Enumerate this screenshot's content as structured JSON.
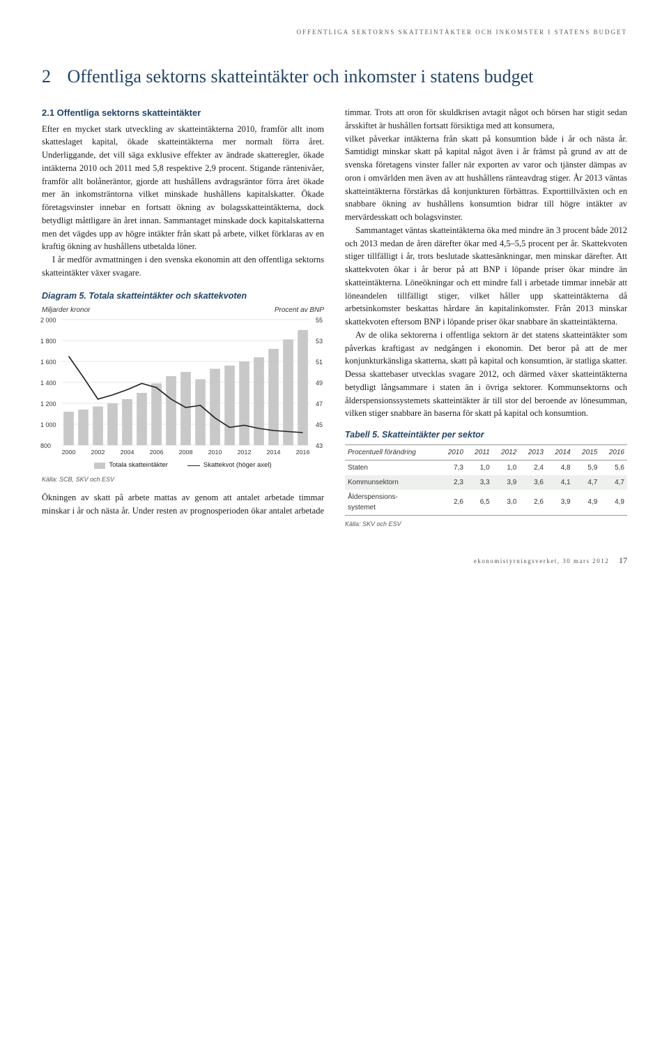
{
  "running_head": "offentliga sektorns skatteintäkter och inkomster i statens budget",
  "title_number": "2",
  "title_text": "Offentliga sektorns skatteintäkter och inkomster i statens budget",
  "section_head": "2.1 Offentliga sektorns skatteintäkter",
  "para1": "Efter en mycket stark utveckling av skatteintäkterna 2010, framför allt inom skatteslaget kapital, ökade skatteintäkterna mer normalt förra året. Underliggande, det vill säga exklusive effekter av ändrade skatteregler, ökade intäkterna 2010 och 2011 med 5,8 respektive 2,9 procent. Stigande räntenivåer, framför allt bolåneräntor, gjorde att hushållens avdragsräntor förra året ökade mer än inkomsträntorna vilket minskade hushållens kapitalskatter. Ökade företagsvinster innebar en fortsatt ökning av bolagsskatteintäkterna, dock betydligt måttligare än året innan. Sammantaget minskade dock kapitalskatterna men det vägdes upp av högre intäkter från skatt på arbete, vilket förklaras av en kraftig ökning av hushållens utbetalda löner.",
  "para2": "I år medför avmattningen i den svenska ekonomin att den offentliga sektorns skatteintäkter växer svagare.",
  "para3": "Ökningen av skatt på arbete mattas av genom att antalet arbetade timmar minskar i år och nästa år. Under resten av prognosperioden ökar antalet arbetade timmar. Trots att oron för skuldkrisen avtagit något och börsen har stigit sedan årsskiftet är hushållen fortsatt försiktiga med att konsumera,",
  "para4": "vilket påverkar intäkterna från skatt på konsumtion både i år och nästa år. Samtidigt minskar skatt på kapital något även i år främst på grund av att de svenska företagens vinster faller när exporten av varor och tjänster dämpas av oron i omvärlden men även av att hushållens ränteavdrag stiger. År 2013 väntas skatteintäkterna förstärkas då konjunkturen förbättras. Exporttillväxten och en snabbare ökning av hushållens konsumtion bidrar till högre intäkter av mervärdesskatt och bolagsvinster.",
  "para5": "Sammantaget väntas skatteintäkterna öka med mindre än 3 procent både 2012 och 2013 medan de åren därefter ökar med 4,5–5,5 procent per år. Skattekvoten stiger tillfälligt i år, trots beslutade skattesänkningar, men minskar därefter. Att skattekvoten ökar i år beror på att BNP i löpande priser ökar mindre än skatteintäkterna. Löneökningar och ett mindre fall i arbetade timmar innebär att löneandelen tillfälligt stiger, vilket håller upp skatteintäkterna då arbetsinkomster beskattas hårdare än kapitalinkomster. Från 2013 minskar skattekvoten eftersom BNP i löpande priser ökar snabbare än skatteintäkterna.",
  "para6": "Av de olika sektorerna i offentliga sektorn är det statens skatteintäkter som påverkas kraftigast av nedgången i ekonomin. Det beror på att de mer konjunkturkänsliga skatterna, skatt på kapital och konsumtion, är statliga skatter. Dessa skattebaser utvecklas svagare 2012, och därmed växer skatteintäkterna betydligt långsammare i staten än i övriga sektorer. Kommunsektorns och ålderspensionssystemets skatteintäkter är till stor del beroende av lönesumman, vilken stiger snabbare än baserna för skatt på kapital och konsumtion.",
  "chart": {
    "title": "Diagram 5. Totala skatteintäkter och skattekvoten",
    "left_label": "Miljarder kronor",
    "right_label": "Procent av BNP",
    "x_categories": [
      "2000",
      "2002",
      "2004",
      "2006",
      "2008",
      "2010",
      "2012",
      "2014",
      "2016"
    ],
    "left_ticks": [
      "2 000",
      "1 800",
      "1 600",
      "1 400",
      "1 200",
      "1 000",
      "800"
    ],
    "left_min": 800,
    "left_max": 2000,
    "right_ticks": [
      "55",
      "53",
      "51",
      "49",
      "47",
      "45",
      "43"
    ],
    "right_min": 43,
    "right_max": 55,
    "bar_values": [
      1120,
      1140,
      1170,
      1200,
      1240,
      1300,
      1390,
      1460,
      1500,
      1430,
      1530,
      1560,
      1600,
      1640,
      1720,
      1810,
      1900
    ],
    "line_values": [
      51.5,
      49.5,
      47.4,
      47.8,
      48.3,
      48.9,
      48.5,
      47.4,
      46.6,
      46.8,
      45.6,
      44.7,
      44.9,
      44.6,
      44.4,
      44.3,
      44.2
    ],
    "bar_color": "#c8c8c8",
    "grid_color": "#cfcfcf",
    "line_color": "#222222",
    "bg_color": "#ffffff",
    "legend1": "Totala skatteintäkter",
    "legend2": "Skattekvot (höger axel)",
    "source": "Källa: SCB, SKV och ESV"
  },
  "table": {
    "title": "Tabell 5. Skatteintäkter per sektor",
    "col_label": "Procentuell förändring",
    "columns": [
      "2010",
      "2011",
      "2012",
      "2013",
      "2014",
      "2015",
      "2016"
    ],
    "rows": [
      {
        "label": "Staten",
        "cells": [
          "7,3",
          "1,0",
          "1,0",
          "2,4",
          "4,8",
          "5,9",
          "5,6"
        ]
      },
      {
        "label": "Kommunsektorn",
        "cells": [
          "2,3",
          "3,3",
          "3,9",
          "3,6",
          "4,1",
          "4,7",
          "4,7"
        ]
      },
      {
        "label": "Ålderspensions-\nsystemet",
        "cells": [
          "2,6",
          "6,5",
          "3,0",
          "2,6",
          "3,9",
          "4,9",
          "4,9"
        ]
      }
    ],
    "source": "Källa: SKV och ESV"
  },
  "footer_text": "ekonomistyrningsverket, 30 mars 2012",
  "page_number": "17"
}
